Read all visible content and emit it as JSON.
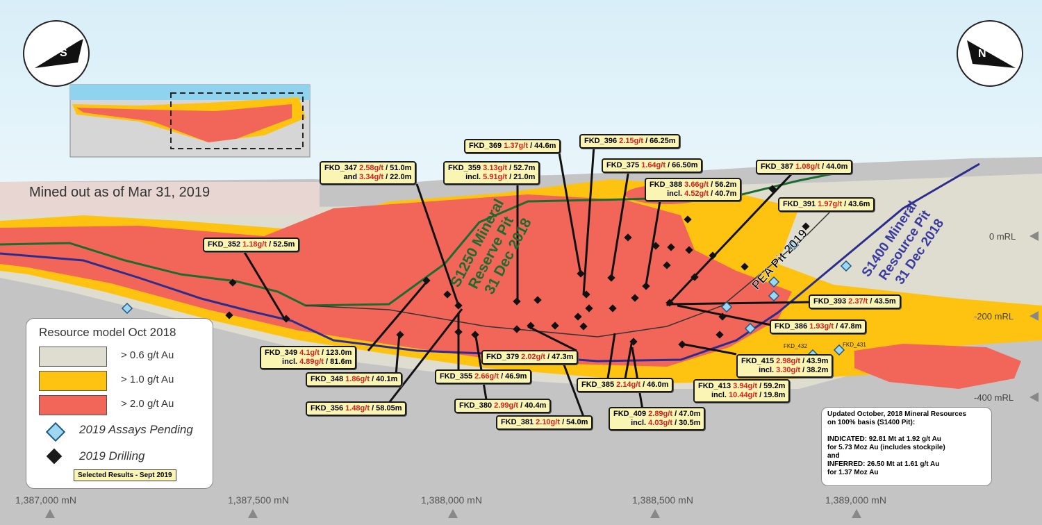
{
  "mined_label": "Mined out as of Mar 31, 2019",
  "compass": {
    "left": "S",
    "right": "N"
  },
  "pit_labels": {
    "s1250": [
      "S1250 Mineral",
      "Reserve Pit",
      "31 Dec 2018"
    ],
    "pea": "PEA Pit 2019",
    "s1400": [
      "S1400 Mineral",
      "Resource Pit",
      "31 Dec 2018"
    ]
  },
  "mrl_labels": [
    "0 mRL",
    "-200 mRL",
    "-400 mRL"
  ],
  "northing_labels": [
    "1,387,000 mN",
    "1,387,500 mN",
    "1,388,000 mN",
    "1,388,500 mN",
    "1,389,000 mN"
  ],
  "hole_tags": [
    "FKD_432",
    "FKD_431"
  ],
  "legend": {
    "title": "Resource model Oct 2018",
    "grades": [
      {
        "label": "> 0.6 g/t Au",
        "color": "#deddcf"
      },
      {
        "label": "> 1.0 g/t Au",
        "color": "#fec210"
      },
      {
        "label": "> 2.0 g/t Au",
        "color": "#f26659"
      }
    ],
    "symbols": [
      {
        "label": "2019  Assays Pending",
        "color": "#9fd7f1"
      },
      {
        "label": "2019  Drilling",
        "color": "#1a1a1a"
      }
    ],
    "selected": "Selected Results - Sept 2019"
  },
  "info_box": [
    "Updated October, 2018 Mineral Resources",
    "on 100% basis (S1400 Pit):",
    "",
    "INDICATED: 92.81 Mt at 1.92 g/t Au",
    "for 5.73 Moz Au (includes stockpile)",
    "and",
    "INFERRED: 26.50 Mt at 1.61 g/t Au",
    "for 1.37 Moz Au"
  ],
  "callouts": [
    {
      "hole": "FKD_347",
      "grade": "2.58g/t",
      "length": "/ 51.0m",
      "pre2": "and",
      "grade2": "3.34g/t",
      "length2": "/ 22.0m"
    },
    {
      "hole": "FKD_359",
      "grade": "3.13g/t",
      "length": "/ 52.7m",
      "pre2": "incl.",
      "grade2": "5.91g/t",
      "length2": "/ 21.0m"
    },
    {
      "hole": "FKD_369",
      "grade": "1.37g/t",
      "length": "/ 44.6m"
    },
    {
      "hole": "FKD_396",
      "grade": "2.15g/t",
      "length": "/ 66.25m"
    },
    {
      "hole": "FKD_375",
      "grade": "1.64g/t",
      "length": "/ 66.50m"
    },
    {
      "hole": "FKD_388",
      "grade": "3.66g/t",
      "length": "/ 56.2m",
      "pre2": "incl.",
      "grade2": "4.52g/t",
      "length2": "/ 40.7m"
    },
    {
      "hole": "FKD_387",
      "grade": "1.08g/t",
      "length": "/ 44.0m"
    },
    {
      "hole": "FKD_391",
      "grade": "1.97g/t",
      "length": "/ 43.6m"
    },
    {
      "hole": "FKD_352",
      "grade": "1.18g/t",
      "length": "/ 52.5m"
    },
    {
      "hole": "FKD_393",
      "grade": "2.37/t",
      "length": "/ 43.5m"
    },
    {
      "hole": "FKD_386",
      "grade": "1.93g/t",
      "length": "/ 47.8m"
    },
    {
      "hole": "FKD_349",
      "grade": "4.1g/t",
      "length": "/ 123.0m",
      "pre2": "incl.",
      "grade2": "4.89g/t",
      "length2": "/ 81.6m"
    },
    {
      "hole": "FKD_379",
      "grade": "2.02g/t",
      "length": "/ 47.3m"
    },
    {
      "hole": "FKD_415",
      "grade": "2.98g/t",
      "length": "/ 43.9m",
      "pre2": "incl.",
      "grade2": "3.30g/t",
      "length2": "/ 38.2m"
    },
    {
      "hole": "FKD_348",
      "grade": "1.86g/t",
      "length": "/ 40.1m"
    },
    {
      "hole": "FKD_355",
      "grade": "2.66g/t",
      "length": "/ 46.9m"
    },
    {
      "hole": "FKD_385",
      "grade": "2.14g/t",
      "length": "/ 46.0m"
    },
    {
      "hole": "FKD_413",
      "grade": "3.94g/t",
      "length": "/ 59.2m",
      "pre2": "incl.",
      "grade2": "10.44g/t",
      "length2": "/ 19.8m"
    },
    {
      "hole": "FKD_356",
      "grade": "1.48g/t",
      "length": "/ 58.05m"
    },
    {
      "hole": "FKD_380",
      "grade": "2.99g/t",
      "length": "/ 40.4m"
    },
    {
      "hole": "FKD_409",
      "grade": "2.89g/t",
      "length": "/ 47.0m",
      "pre2": "incl.",
      "grade2": "4.03g/t",
      "length2": "/ 30.5m"
    },
    {
      "hole": "FKD_381",
      "grade": "2.10g/t",
      "length": "/ 54.0m"
    }
  ]
}
